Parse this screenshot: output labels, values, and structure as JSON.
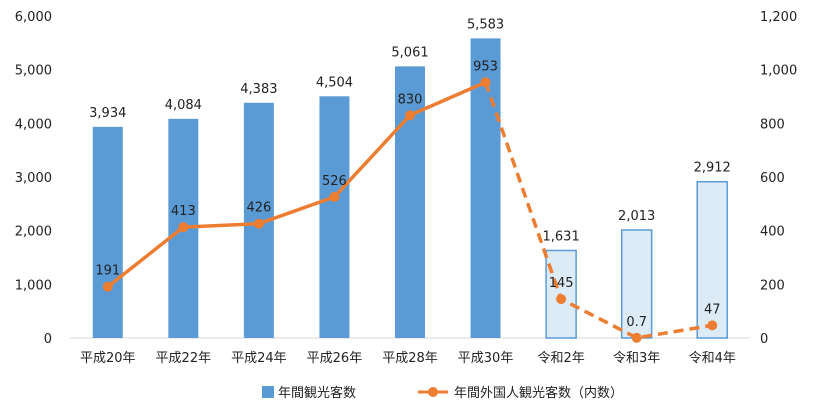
{
  "chart_data": {
    "type": "bar",
    "categories": [
      "平成20年",
      "平成22年",
      "平成24年",
      "平成26年",
      "平成28年",
      "平成30年",
      "令和2年",
      "令和3年",
      "令和4年"
    ],
    "series": [
      {
        "name": "年間観光客数",
        "type": "bar",
        "axis": "left",
        "values": [
          3934,
          4084,
          4383,
          4504,
          5061,
          5583,
          1631,
          2013,
          2912
        ],
        "labels": [
          "3,934",
          "4,084",
          "4,383",
          "4,504",
          "5,061",
          "5,583",
          "1,631",
          "2,013",
          "2,912"
        ],
        "color": "#5b9bd5",
        "light_color": "#ddebf7",
        "light_from_index": 6
      },
      {
        "name": "年間外国人観光客数（内数）",
        "type": "line",
        "axis": "right",
        "values": [
          191,
          413,
          426,
          526,
          830,
          953,
          145,
          0.7,
          47
        ],
        "labels": [
          "191",
          "413",
          "426",
          "526",
          "830",
          "953",
          "145",
          "0.7",
          "47"
        ],
        "color": "#ed7d31",
        "dashed_from_index": 5
      }
    ],
    "y_left": {
      "lim": [
        0,
        6000
      ],
      "ticks": [
        "0",
        "1,000",
        "2,000",
        "3,000",
        "4,000",
        "5,000",
        "6,000"
      ]
    },
    "y_right": {
      "lim": [
        0,
        1200
      ],
      "ticks": [
        "0",
        "200",
        "400",
        "600",
        "800",
        "1,000",
        "1,200"
      ]
    },
    "legend": "bottom",
    "grid": false
  }
}
